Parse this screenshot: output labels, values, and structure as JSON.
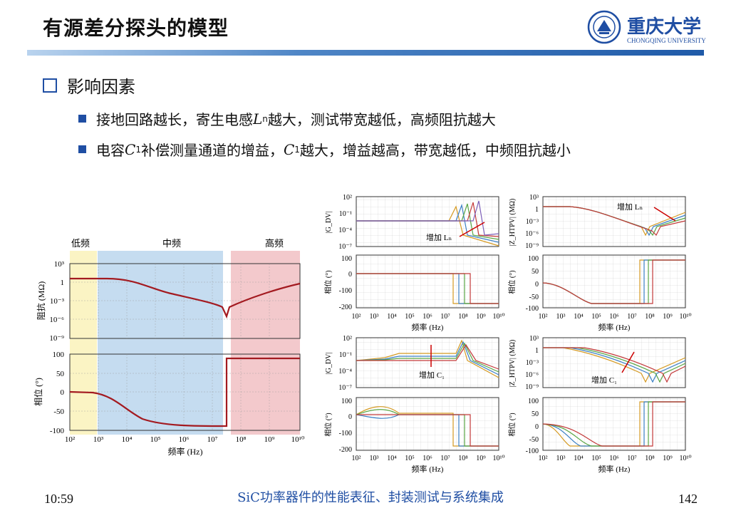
{
  "title": "有源差分探头的模型",
  "logo": {
    "chinese": "重庆大学",
    "english": "CHONGQING UNIVERSITY"
  },
  "section": "影响因素",
  "bullets": [
    {
      "pre": "接地回路越长，寄生电感",
      "sym": "L",
      "sub": "n",
      "post": "越大，测试带宽越低，高频阻抗越大"
    },
    {
      "pre": "电容",
      "sym": "C",
      "sub": "1",
      "mid": "补偿测量通道的增益，",
      "sym2": "C",
      "sub2": "1",
      "post": "越大，增益越高，带宽越低，中频阻抗越小"
    }
  ],
  "left_figure": {
    "bands": [
      "低频",
      "中频",
      "高频"
    ],
    "xticks": [
      "10²",
      "10³",
      "10⁴",
      "10⁵",
      "10⁶",
      "10⁷",
      "10⁸",
      "10⁹",
      "10¹⁰"
    ],
    "xlabel": "频率 (Hz)",
    "mag_ylabel": "阻抗 (MΩ)",
    "mag_yticks": [
      "10³",
      "1",
      "10⁻³",
      "10⁻⁶",
      "10⁻⁹"
    ],
    "phase_ylabel": "相位 (°)",
    "phase_yticks": [
      "100",
      "50",
      "0",
      "-50",
      "-100"
    ]
  },
  "right_figures": {
    "gdv_label": "|G_DV|",
    "gdv_yticks": [
      "10²",
      "10⁻¹",
      "10⁻⁴",
      "10⁻⁷"
    ],
    "z_label": "|Z_HTPV| (MΩ)",
    "z_yticks": [
      "10³",
      "1",
      "10⁻³",
      "10⁻⁶",
      "10⁻⁹"
    ],
    "phase_ylabel": "相位 (°)",
    "phase_yticks": [
      "100",
      "0",
      "-100",
      "-200"
    ],
    "phase_yticks_z": [
      "100",
      "50",
      "0",
      "-50",
      "-100"
    ],
    "xticks": [
      "10²",
      "10³",
      "10⁴",
      "10⁵",
      "10⁶",
      "10⁷",
      "10⁸",
      "10⁹",
      "10¹⁰"
    ],
    "xlabel": "频率 (Hz)",
    "annot_ln": "增加 Lₙ",
    "annot_c1": "增加 C₁"
  },
  "footer": {
    "time": "10:59",
    "center": "SiC功率器件的性能表征、封装测试与系统集成",
    "page": "142"
  },
  "colors": {
    "accent": "#1f4ea3",
    "curve": "#a31a20",
    "low_band": "#fbf4c4",
    "mid_band": "#c5dcf0",
    "high_band": "#f3c9cc"
  }
}
